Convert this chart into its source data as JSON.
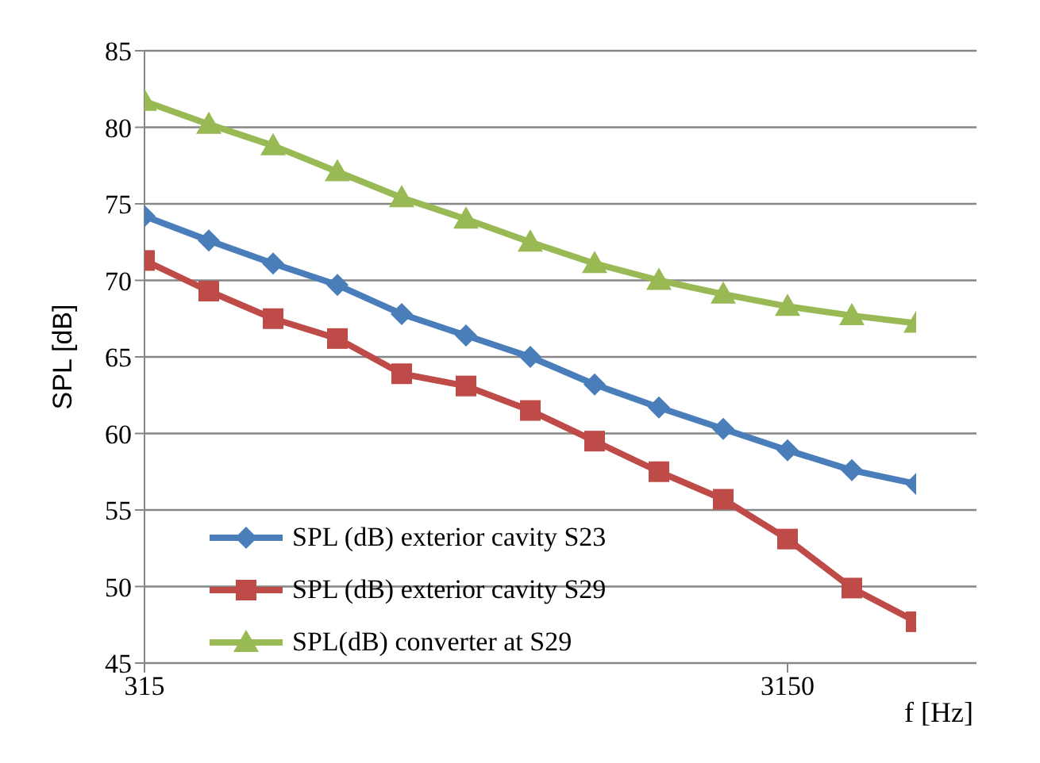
{
  "chart_data": {
    "type": "line",
    "xlabel": "f [Hz]",
    "ylabel": "SPL [dB]",
    "categories": [
      "315",
      null,
      null,
      null,
      null,
      null,
      null,
      null,
      null,
      null,
      "3150",
      null,
      null
    ],
    "ylim": [
      45,
      85
    ],
    "yticks": [
      45,
      50,
      55,
      60,
      65,
      70,
      75,
      80,
      85
    ],
    "grid": "y",
    "legend": "bottom left",
    "series": [
      {
        "name": "SPL (dB) exterior cavity S23",
        "color": "#4a7ebb",
        "marker": "diamond",
        "values": [
          74.2,
          72.6,
          71.1,
          69.7,
          67.8,
          66.4,
          65.0,
          63.2,
          61.7,
          60.3,
          58.9,
          57.6,
          56.7
        ]
      },
      {
        "name": "SPL (dB) exterior cavity S29",
        "color": "#be4b48",
        "marker": "square",
        "values": [
          71.3,
          69.3,
          67.5,
          66.2,
          63.9,
          63.1,
          61.5,
          59.5,
          57.5,
          55.7,
          53.1,
          49.9,
          47.7
        ]
      },
      {
        "name": "SPL(dB) converter at S29",
        "color": "#98b954",
        "marker": "triangle",
        "values": [
          81.7,
          80.2,
          78.8,
          77.1,
          75.4,
          74.0,
          72.5,
          71.1,
          70.0,
          69.1,
          68.3,
          67.7,
          67.2
        ]
      }
    ]
  }
}
